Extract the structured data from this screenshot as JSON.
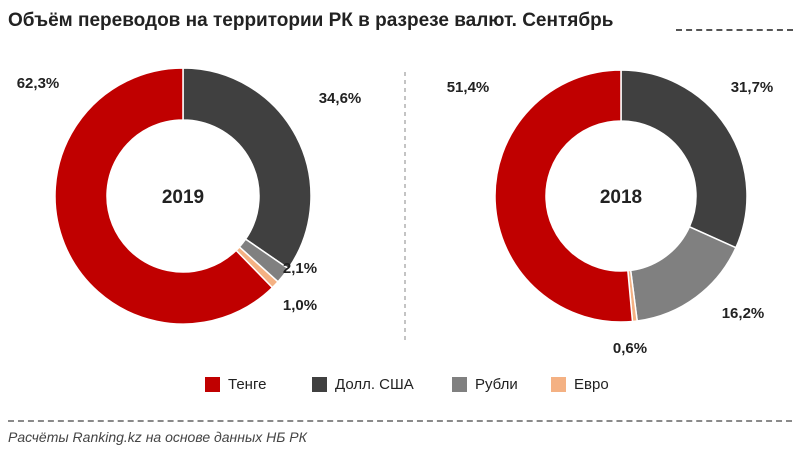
{
  "title": "Объём переводов на территории РК в разрезе валют. Сентябрь",
  "source": "Расчёты Ranking.kz на основе данных НБ РК",
  "legend": [
    {
      "label": "Тенге",
      "color": "#c00000"
    },
    {
      "label": "Долл. США",
      "color": "#404040"
    },
    {
      "label": "Рубли",
      "color": "#808080"
    },
    {
      "label": "Евро",
      "color": "#f4b183"
    }
  ],
  "chart_data": [
    {
      "type": "pie",
      "title": "2019",
      "categories": [
        "Долл. США",
        "Рубли",
        "Евро",
        "Тенге"
      ],
      "values": [
        34.6,
        2.1,
        1.0,
        62.3
      ],
      "labels": [
        "34,6%",
        "2,1%",
        "1,0%",
        "62,3%"
      ],
      "colors": [
        "#404040",
        "#808080",
        "#f4b183",
        "#c00000"
      ]
    },
    {
      "type": "pie",
      "title": "2018",
      "categories": [
        "Долл. США",
        "Рубли",
        "Евро",
        "Тенге"
      ],
      "values": [
        31.7,
        16.2,
        0.6,
        51.4
      ],
      "labels": [
        "31,7%",
        "16,2%",
        "0,6%",
        "51,4%"
      ],
      "colors": [
        "#404040",
        "#808080",
        "#f4b183",
        "#c00000"
      ]
    }
  ]
}
